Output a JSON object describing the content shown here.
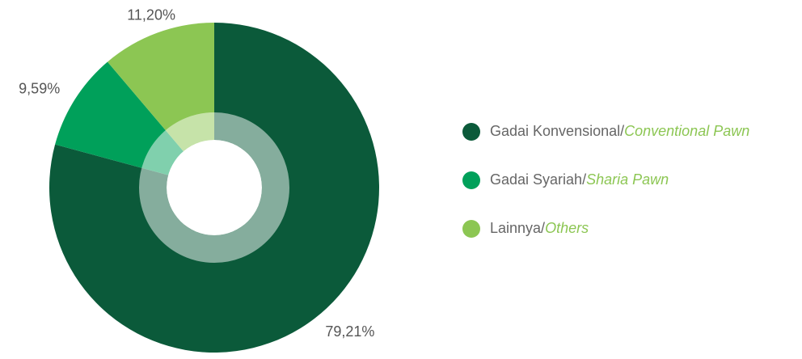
{
  "chart_data": {
    "type": "pie",
    "categories": [
      "Gadai Konvensional/Conventional Pawn",
      "Gadai Syariah/Sharia Pawn",
      "Lainnya/Others"
    ],
    "values": [
      79.21,
      9.59,
      11.2
    ],
    "value_labels": [
      "79,21%",
      "9,59%",
      "11,20%"
    ],
    "colors": [
      "#0b5a3a",
      "#00a05a",
      "#8cc653"
    ]
  }
}
